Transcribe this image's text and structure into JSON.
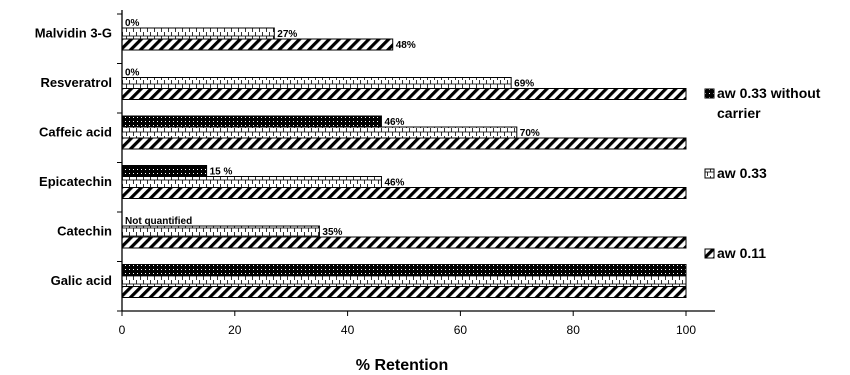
{
  "chart_data": {
    "type": "bar",
    "orientation": "horizontal",
    "categories": [
      "Malvidin 3-G",
      "Resveratrol",
      "Caffeic acid",
      "Epicatechin",
      "Catechin",
      "Galic acid"
    ],
    "series": [
      {
        "name": "aw 0.33 without carrier",
        "pattern": "dots",
        "values": [
          0,
          0,
          46,
          15,
          null,
          100
        ],
        "labels": [
          "0%",
          "0%",
          "46%",
          "15 %",
          "Not quantified",
          ""
        ]
      },
      {
        "name": "aw 0.33",
        "pattern": "bricks",
        "values": [
          27,
          69,
          70,
          46,
          35,
          100
        ],
        "labels": [
          "27%",
          "69%",
          "70%",
          "46%",
          "35%",
          ""
        ]
      },
      {
        "name": "aw 0.11",
        "pattern": "diagonal-hatch",
        "values": [
          48,
          100,
          100,
          100,
          100,
          100
        ],
        "labels": [
          "48%",
          "",
          "",
          "",
          "",
          ""
        ]
      }
    ],
    "xlabel": "% Retention",
    "xlim": [
      0,
      105
    ],
    "xticks": [
      0,
      20,
      40,
      60,
      80,
      100
    ],
    "legend_position": "right",
    "grid": false
  }
}
